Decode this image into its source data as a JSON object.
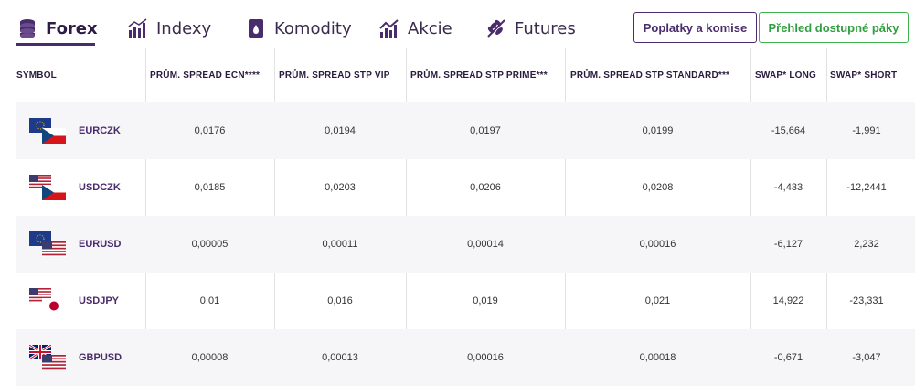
{
  "tabs": [
    {
      "label": "Forex",
      "icon": "coins-icon",
      "active": true
    },
    {
      "label": "Indexy",
      "icon": "bar-chart-icon",
      "active": false
    },
    {
      "label": "Komodity",
      "icon": "oil-barrel-icon",
      "active": false
    },
    {
      "label": "Akcie",
      "icon": "trend-chart-icon",
      "active": false
    },
    {
      "label": "Futures",
      "icon": "wheat-icon",
      "active": false
    }
  ],
  "buttons": {
    "fees_label": "Poplatky a komise",
    "leverage_label": "Přehled dostupné páky"
  },
  "colors": {
    "accent": "#4a2b6b",
    "green": "#3fb34f"
  },
  "table": {
    "headers": [
      "SYMBOL",
      "PRŮM. SPREAD ECN****",
      "PRŮM. SPREAD STP VIP",
      "PRŮM. SPREAD STP PRIME***",
      "PRŮM. SPREAD STP STANDARD***",
      "SWAP* LONG",
      "SWAP* SHORT"
    ],
    "rows": [
      {
        "symbol": "EURCZK",
        "flags": [
          "eu-flag-icon",
          "cz-flag-icon"
        ],
        "ecn": "0,0176",
        "vip": "0,0194",
        "prime": "0,0197",
        "standard": "0,0199",
        "swap_long": "-15,664",
        "swap_short": "-1,991"
      },
      {
        "symbol": "USDCZK",
        "flags": [
          "us-flag-icon",
          "cz-flag-icon"
        ],
        "ecn": "0,0185",
        "vip": "0,0203",
        "prime": "0,0206",
        "standard": "0,0208",
        "swap_long": "-4,433",
        "swap_short": "-12,2441"
      },
      {
        "symbol": "EURUSD",
        "flags": [
          "eu-flag-icon",
          "us-flag-icon"
        ],
        "ecn": "0,00005",
        "vip": "0,00011",
        "prime": "0,00014",
        "standard": "0,00016",
        "swap_long": "-6,127",
        "swap_short": "2,232"
      },
      {
        "symbol": "USDJPY",
        "flags": [
          "us-flag-icon",
          "jp-flag-icon"
        ],
        "ecn": "0,01",
        "vip": "0,016",
        "prime": "0,019",
        "standard": "0,021",
        "swap_long": "14,922",
        "swap_short": "-23,331"
      },
      {
        "symbol": "GBPUSD",
        "flags": [
          "gb-flag-icon",
          "us-flag-icon"
        ],
        "ecn": "0,00008",
        "vip": "0,00013",
        "prime": "0,00016",
        "standard": "0,00018",
        "swap_long": "-0,671",
        "swap_short": "-3,047"
      }
    ]
  }
}
